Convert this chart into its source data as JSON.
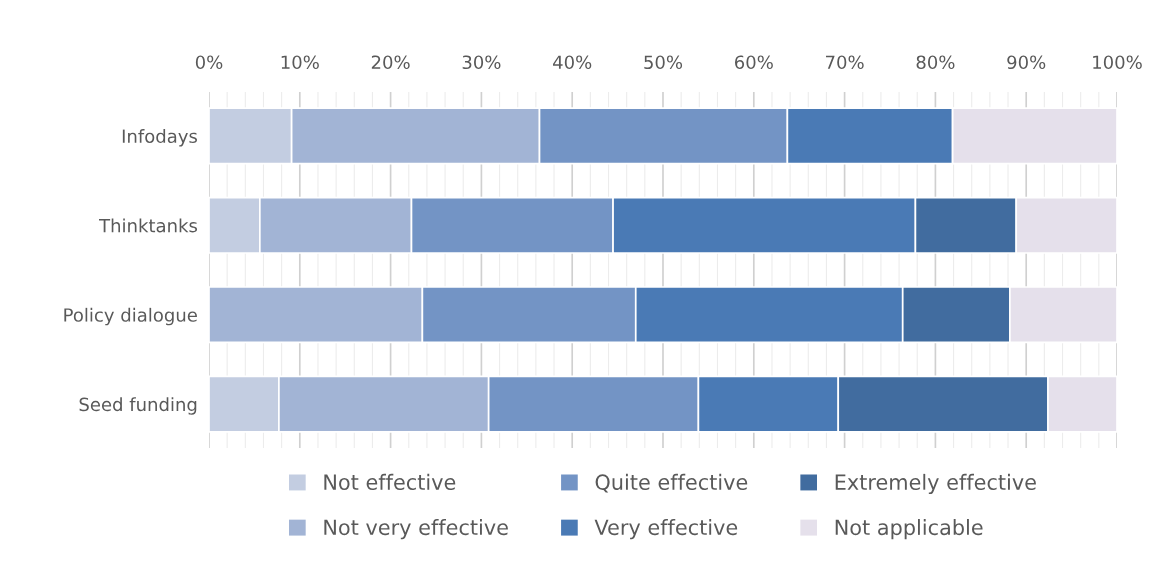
{
  "chart_data": {
    "type": "bar",
    "orientation": "horizontal",
    "stacked": true,
    "categories": [
      "Infodays",
      "Thinktanks",
      "Policy dialogue",
      "Seed funding"
    ],
    "series": [
      {
        "name": "Not effective",
        "color": "#c3cde1",
        "values": [
          9.1,
          5.6,
          0,
          7.7
        ]
      },
      {
        "name": "Not very effective",
        "color": "#a2b4d5",
        "values": [
          27.3,
          16.7,
          23.5,
          23.1
        ]
      },
      {
        "name": "Quite effective",
        "color": "#7394c5",
        "values": [
          27.3,
          22.2,
          23.5,
          23.1
        ]
      },
      {
        "name": "Very effective",
        "color": "#4a7ab5",
        "values": [
          18.2,
          33.3,
          29.4,
          15.4
        ]
      },
      {
        "name": "Extremely effective",
        "color": "#416c9f",
        "values": [
          0,
          11.1,
          11.8,
          23.1
        ]
      },
      {
        "name": "Not applicable",
        "color": "#e5e0eb",
        "values": [
          18.1,
          11.1,
          11.8,
          7.6
        ]
      }
    ],
    "xlim": [
      0,
      100
    ],
    "xticks": [
      {
        "value": 0,
        "label": "0%"
      },
      {
        "value": 2,
        "label": null
      },
      {
        "value": 4,
        "label": null
      },
      {
        "value": 6,
        "label": null
      },
      {
        "value": 8,
        "label": null
      },
      {
        "value": 10,
        "label": "10%"
      },
      {
        "value": 12,
        "label": null
      },
      {
        "value": 14,
        "label": null
      },
      {
        "value": 16,
        "label": null
      },
      {
        "value": 18,
        "label": null
      },
      {
        "value": 20,
        "label": "20%"
      },
      {
        "value": 22,
        "label": null
      },
      {
        "value": 24,
        "label": null
      },
      {
        "value": 26,
        "label": null
      },
      {
        "value": 28,
        "label": null
      },
      {
        "value": 30,
        "label": "30%"
      },
      {
        "value": 32,
        "label": null
      },
      {
        "value": 34,
        "label": null
      },
      {
        "value": 36,
        "label": null
      },
      {
        "value": 38,
        "label": null
      },
      {
        "value": 40,
        "label": "40%"
      },
      {
        "value": 42,
        "label": null
      },
      {
        "value": 44,
        "label": null
      },
      {
        "value": 46,
        "label": null
      },
      {
        "value": 48,
        "label": null
      },
      {
        "value": 50,
        "label": "50%"
      },
      {
        "value": 52,
        "label": null
      },
      {
        "value": 54,
        "label": null
      },
      {
        "value": 56,
        "label": null
      },
      {
        "value": 58,
        "label": null
      },
      {
        "value": 60,
        "label": "60%"
      },
      {
        "value": 62,
        "label": null
      },
      {
        "value": 64,
        "label": null
      },
      {
        "value": 66,
        "label": null
      },
      {
        "value": 68,
        "label": null
      },
      {
        "value": 70,
        "label": "70%"
      },
      {
        "value": 72,
        "label": null
      },
      {
        "value": 74,
        "label": null
      },
      {
        "value": 76,
        "label": null
      },
      {
        "value": 78,
        "label": null
      },
      {
        "value": 80,
        "label": "80%"
      },
      {
        "value": 82,
        "label": null
      },
      {
        "value": 84,
        "label": null
      },
      {
        "value": 86,
        "label": null
      },
      {
        "value": 88,
        "label": null
      },
      {
        "value": 90,
        "label": "90%"
      },
      {
        "value": 92,
        "label": null
      },
      {
        "value": 94,
        "label": null
      },
      {
        "value": 96,
        "label": null
      },
      {
        "value": 98,
        "label": null
      },
      {
        "value": 100,
        "label": "100%"
      }
    ],
    "grid": "x",
    "legend": "bottom"
  }
}
